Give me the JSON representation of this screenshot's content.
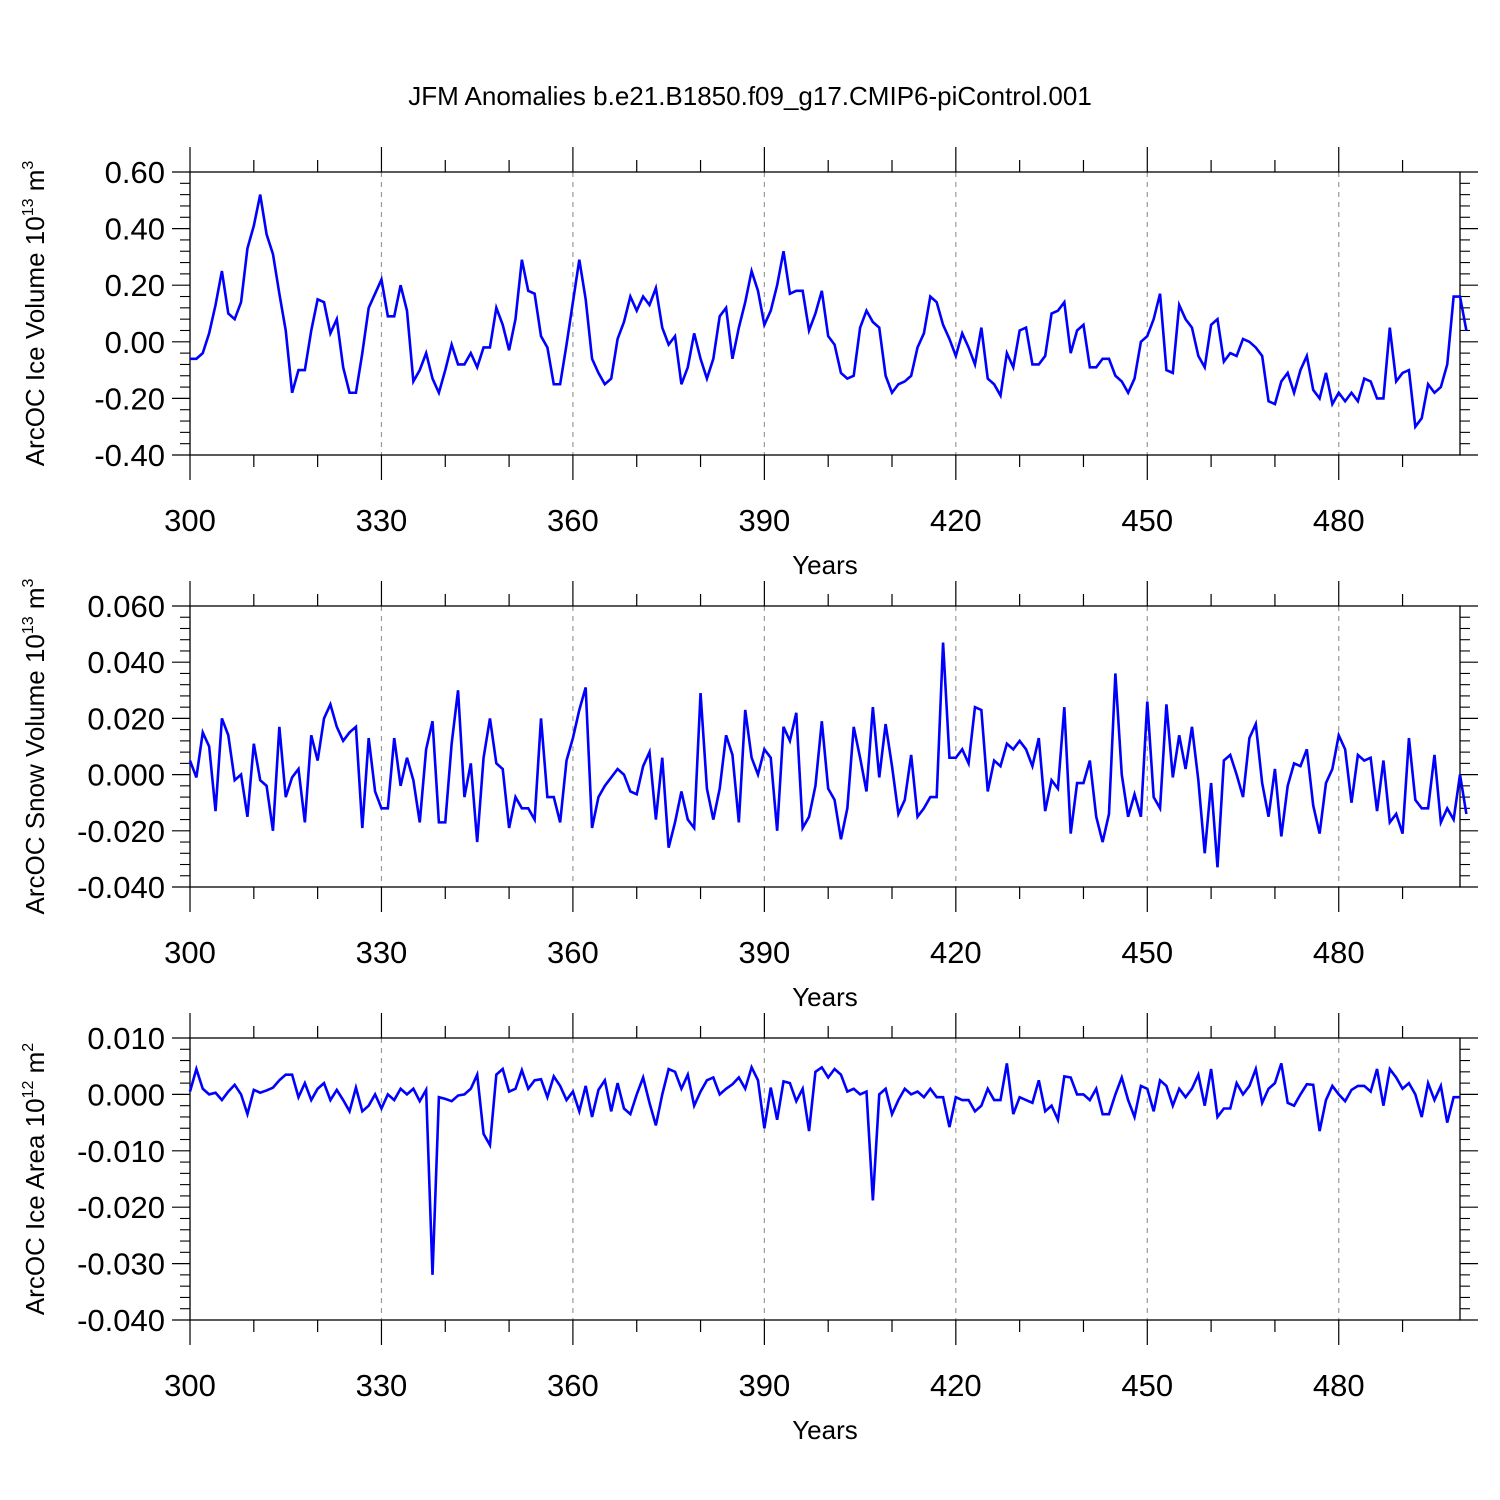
{
  "figure": {
    "title": "JFM Anomalies b.e21.B1850.f09_g17.CMIP6-piControl.001",
    "line_color": "#0000ff",
    "grid_color": "#999999"
  },
  "chart_data": [
    {
      "type": "line",
      "name": "ice-volume",
      "ylabel": "ArcOC Ice Volume 10",
      "ylabel_exp": "13",
      "ylabel_unit": " m",
      "ylabel_unit_exp": "3",
      "xlabel": "Years",
      "xlim": [
        300,
        499
      ],
      "ylim": [
        -0.4,
        0.6
      ],
      "xticks": [
        300,
        330,
        360,
        390,
        420,
        450,
        480
      ],
      "xtick_labels": [
        "300",
        "330",
        "360",
        "390",
        "420",
        "450",
        "480"
      ],
      "yticks": [
        -0.4,
        -0.2,
        0.0,
        0.2,
        0.4,
        0.6
      ],
      "ytick_labels": [
        "-0.40",
        "-0.20",
        "0.00",
        "0.20",
        "0.40",
        "0.60"
      ],
      "vgrid_dashed_at": [
        330,
        360,
        390,
        420,
        450,
        480
      ],
      "x_start": 300,
      "values": [
        -0.06,
        -0.06,
        -0.04,
        0.03,
        0.13,
        0.25,
        0.1,
        0.08,
        0.14,
        0.33,
        0.41,
        0.52,
        0.38,
        0.31,
        0.17,
        0.04,
        -0.18,
        -0.1,
        -0.1,
        0.04,
        0.15,
        0.14,
        0.03,
        0.08,
        -0.09,
        -0.18,
        -0.18,
        -0.04,
        0.12,
        0.17,
        0.22,
        0.09,
        0.09,
        0.2,
        0.11,
        -0.14,
        -0.1,
        -0.04,
        -0.13,
        -0.18,
        -0.1,
        -0.01,
        -0.08,
        -0.08,
        -0.04,
        -0.09,
        -0.02,
        -0.02,
        0.12,
        0.06,
        -0.03,
        0.08,
        0.29,
        0.18,
        0.17,
        0.02,
        -0.02,
        -0.15,
        -0.15,
        -0.01,
        0.14,
        0.29,
        0.15,
        -0.06,
        -0.11,
        -0.15,
        -0.13,
        0.01,
        0.07,
        0.16,
        0.11,
        0.16,
        0.13,
        0.19,
        0.05,
        -0.01,
        0.02,
        -0.15,
        -0.09,
        0.03,
        -0.06,
        -0.13,
        -0.06,
        0.09,
        0.12,
        -0.06,
        0.05,
        0.14,
        0.25,
        0.18,
        0.06,
        0.11,
        0.2,
        0.32,
        0.17,
        0.18,
        0.18,
        0.04,
        0.1,
        0.18,
        0.02,
        -0.01,
        -0.11,
        -0.13,
        -0.12,
        0.05,
        0.11,
        0.07,
        0.05,
        -0.12,
        -0.18,
        -0.15,
        -0.14,
        -0.12,
        -0.02,
        0.03,
        0.16,
        0.14,
        0.06,
        0.01,
        -0.05,
        0.03,
        -0.02,
        -0.08,
        0.05,
        -0.13,
        -0.15,
        -0.19,
        -0.04,
        -0.09,
        0.04,
        0.05,
        -0.08,
        -0.08,
        -0.05,
        0.1,
        0.11,
        0.14,
        -0.04,
        0.04,
        0.06,
        -0.09,
        -0.09,
        -0.06,
        -0.06,
        -0.12,
        -0.14,
        -0.18,
        -0.13,
        0.0,
        0.02,
        0.08,
        0.17,
        -0.1,
        -0.11,
        0.13,
        0.08,
        0.05,
        -0.05,
        -0.09,
        0.06,
        0.08,
        -0.07,
        -0.04,
        -0.05,
        0.01,
        0.0,
        -0.02,
        -0.05,
        -0.21,
        -0.22,
        -0.14,
        -0.11,
        -0.18,
        -0.1,
        -0.05,
        -0.17,
        -0.2,
        -0.11,
        -0.22,
        -0.18,
        -0.21,
        -0.18,
        -0.21,
        -0.13,
        -0.14,
        -0.2,
        -0.2,
        0.05,
        -0.14,
        -0.11,
        -0.1,
        -0.3,
        -0.27,
        -0.15,
        -0.18,
        -0.16,
        -0.08,
        0.16,
        0.16,
        0.04
      ]
    },
    {
      "type": "line",
      "name": "snow-volume",
      "ylabel": "ArcOC Snow Volume 10",
      "ylabel_exp": "13",
      "ylabel_unit": " m",
      "ylabel_unit_exp": "3",
      "xlabel": "Years",
      "xlim": [
        300,
        499
      ],
      "ylim": [
        -0.04,
        0.06
      ],
      "xticks": [
        300,
        330,
        360,
        390,
        420,
        450,
        480
      ],
      "xtick_labels": [
        "300",
        "330",
        "360",
        "390",
        "420",
        "450",
        "480"
      ],
      "yticks": [
        -0.04,
        -0.02,
        0.0,
        0.02,
        0.04,
        0.06
      ],
      "ytick_labels": [
        "-0.040",
        "-0.020",
        "0.000",
        "0.020",
        "0.040",
        "0.060"
      ],
      "vgrid_dashed_at": [
        330,
        360,
        390,
        420,
        450,
        480
      ],
      "x_start": 300,
      "values": [
        0.005,
        -0.001,
        0.015,
        0.01,
        -0.013,
        0.02,
        0.014,
        -0.002,
        0.0,
        -0.015,
        0.011,
        -0.002,
        -0.004,
        -0.02,
        0.017,
        -0.008,
        -0.001,
        0.002,
        -0.017,
        0.014,
        0.005,
        0.02,
        0.025,
        0.017,
        0.012,
        0.015,
        0.017,
        -0.019,
        0.013,
        -0.006,
        -0.012,
        -0.012,
        0.013,
        -0.004,
        0.006,
        -0.002,
        -0.017,
        0.009,
        0.019,
        -0.017,
        -0.017,
        0.011,
        0.03,
        -0.008,
        0.004,
        -0.024,
        0.006,
        0.02,
        0.004,
        0.002,
        -0.019,
        -0.008,
        -0.012,
        -0.012,
        -0.016,
        0.02,
        -0.008,
        -0.008,
        -0.017,
        0.005,
        0.013,
        0.023,
        0.031,
        -0.019,
        -0.008,
        -0.004,
        -0.001,
        0.002,
        0.0,
        -0.006,
        -0.007,
        0.003,
        0.008,
        -0.016,
        0.006,
        -0.026,
        -0.017,
        -0.006,
        -0.016,
        -0.019,
        0.029,
        -0.005,
        -0.016,
        -0.005,
        0.014,
        0.007,
        -0.017,
        0.023,
        0.006,
        0.0,
        0.009,
        0.006,
        -0.02,
        0.017,
        0.012,
        0.022,
        -0.019,
        -0.015,
        -0.004,
        0.019,
        -0.005,
        -0.009,
        -0.023,
        -0.012,
        0.017,
        0.006,
        -0.006,
        0.024,
        -0.001,
        0.018,
        0.003,
        -0.014,
        -0.009,
        0.007,
        -0.015,
        -0.012,
        -0.008,
        -0.008,
        0.047,
        0.006,
        0.006,
        0.009,
        0.004,
        0.024,
        0.023,
        -0.006,
        0.005,
        0.003,
        0.011,
        0.009,
        0.012,
        0.009,
        0.003,
        0.013,
        -0.013,
        -0.002,
        -0.005,
        0.024,
        -0.021,
        -0.003,
        -0.003,
        0.005,
        -0.015,
        -0.024,
        -0.014,
        0.036,
        0.0,
        -0.015,
        -0.007,
        -0.015,
        0.026,
        -0.008,
        -0.012,
        0.025,
        -0.001,
        0.014,
        0.002,
        0.017,
        -0.002,
        -0.028,
        -0.003,
        -0.033,
        0.005,
        0.007,
        0.0,
        -0.008,
        0.013,
        0.018,
        -0.003,
        -0.015,
        0.002,
        -0.022,
        -0.004,
        0.004,
        0.003,
        0.009,
        -0.011,
        -0.021,
        -0.003,
        0.002,
        0.014,
        0.009,
        -0.01,
        0.007,
        0.005,
        0.006,
        -0.013,
        0.005,
        -0.017,
        -0.014,
        -0.021,
        0.013,
        -0.009,
        -0.012,
        -0.012,
        0.007,
        -0.017,
        -0.012,
        -0.016,
        0.0,
        -0.014
      ]
    },
    {
      "type": "line",
      "name": "ice-area",
      "ylabel": "ArcOC Ice Area 10",
      "ylabel_exp": "12",
      "ylabel_unit": " m",
      "ylabel_unit_exp": "2",
      "xlabel": "Years",
      "xlim": [
        300,
        499
      ],
      "ylim": [
        -0.04,
        0.01
      ],
      "xticks": [
        300,
        330,
        360,
        390,
        420,
        450,
        480
      ],
      "xtick_labels": [
        "300",
        "330",
        "360",
        "390",
        "420",
        "450",
        "480"
      ],
      "yticks": [
        -0.04,
        -0.03,
        -0.02,
        -0.01,
        0.0,
        0.01
      ],
      "ytick_labels": [
        "-0.040",
        "-0.030",
        "-0.020",
        "-0.010",
        "0.000",
        "0.010"
      ],
      "vgrid_dashed_at": [
        330,
        360,
        390,
        420,
        450,
        480
      ],
      "x_start": 300,
      "values": [
        0.0005,
        0.0045,
        0.001,
        0.0,
        0.0003,
        -0.001,
        0.0005,
        0.0017,
        0.0,
        -0.0035,
        0.0008,
        0.0003,
        0.0007,
        0.0012,
        0.0025,
        0.0035,
        0.0035,
        -0.0005,
        0.002,
        -0.001,
        0.001,
        0.002,
        -0.001,
        0.0008,
        -0.001,
        -0.003,
        0.0012,
        -0.003,
        -0.002,
        0.0,
        -0.0025,
        0.0,
        -0.001,
        0.001,
        0.0,
        0.001,
        -0.0012,
        0.0008,
        -0.032,
        -0.0005,
        -0.0008,
        -0.0012,
        -0.0002,
        0.0,
        0.001,
        0.0035,
        -0.007,
        -0.009,
        0.0035,
        0.0045,
        0.0005,
        0.001,
        0.0043,
        0.001,
        0.0025,
        0.0027,
        -0.0005,
        0.0032,
        0.0015,
        -0.001,
        0.0005,
        -0.003,
        0.0015,
        -0.004,
        0.0008,
        0.0025,
        -0.003,
        0.002,
        -0.0025,
        -0.0035,
        0.0,
        0.003,
        -0.0015,
        -0.0055,
        0.0,
        0.0045,
        0.004,
        0.001,
        0.0035,
        -0.002,
        0.0005,
        0.0025,
        0.003,
        0.0,
        0.001,
        0.0018,
        0.003,
        0.001,
        0.0048,
        0.0025,
        -0.006,
        0.0012,
        -0.0045,
        0.0023,
        0.002,
        -0.0012,
        0.001,
        -0.0065,
        0.004,
        0.0048,
        0.003,
        0.0045,
        0.0035,
        0.0005,
        0.001,
        0.0,
        0.0005,
        -0.0188,
        0.0,
        0.001,
        -0.0035,
        -0.001,
        0.001,
        0.0,
        0.0005,
        -0.0005,
        0.001,
        -0.0005,
        -0.0005,
        -0.0058,
        -0.0005,
        -0.001,
        -0.001,
        -0.003,
        -0.002,
        0.001,
        -0.001,
        -0.001,
        0.0055,
        -0.0035,
        -0.0005,
        -0.001,
        -0.0015,
        0.0025,
        -0.003,
        -0.002,
        -0.0045,
        0.0032,
        0.003,
        0.0,
        0.0,
        -0.001,
        0.001,
        -0.0035,
        -0.0035,
        0.0,
        0.003,
        -0.001,
        -0.004,
        0.0015,
        0.001,
        -0.003,
        0.0025,
        0.0015,
        -0.002,
        0.001,
        -0.0005,
        0.001,
        0.0035,
        -0.002,
        0.0045,
        -0.004,
        -0.0025,
        -0.0025,
        0.002,
        0.0,
        0.0015,
        0.0045,
        -0.0015,
        0.001,
        0.002,
        0.0055,
        -0.0015,
        -0.002,
        0.0,
        0.0018,
        0.0017,
        -0.0065,
        -0.001,
        0.0015,
        0.0,
        -0.0012,
        0.0008,
        0.0015,
        0.0015,
        0.0005,
        0.0045,
        -0.002,
        0.0045,
        0.003,
        0.001,
        0.002,
        0.0,
        -0.004,
        0.002,
        -0.001,
        0.0015,
        -0.005,
        -0.0005,
        -0.0005
      ]
    }
  ]
}
